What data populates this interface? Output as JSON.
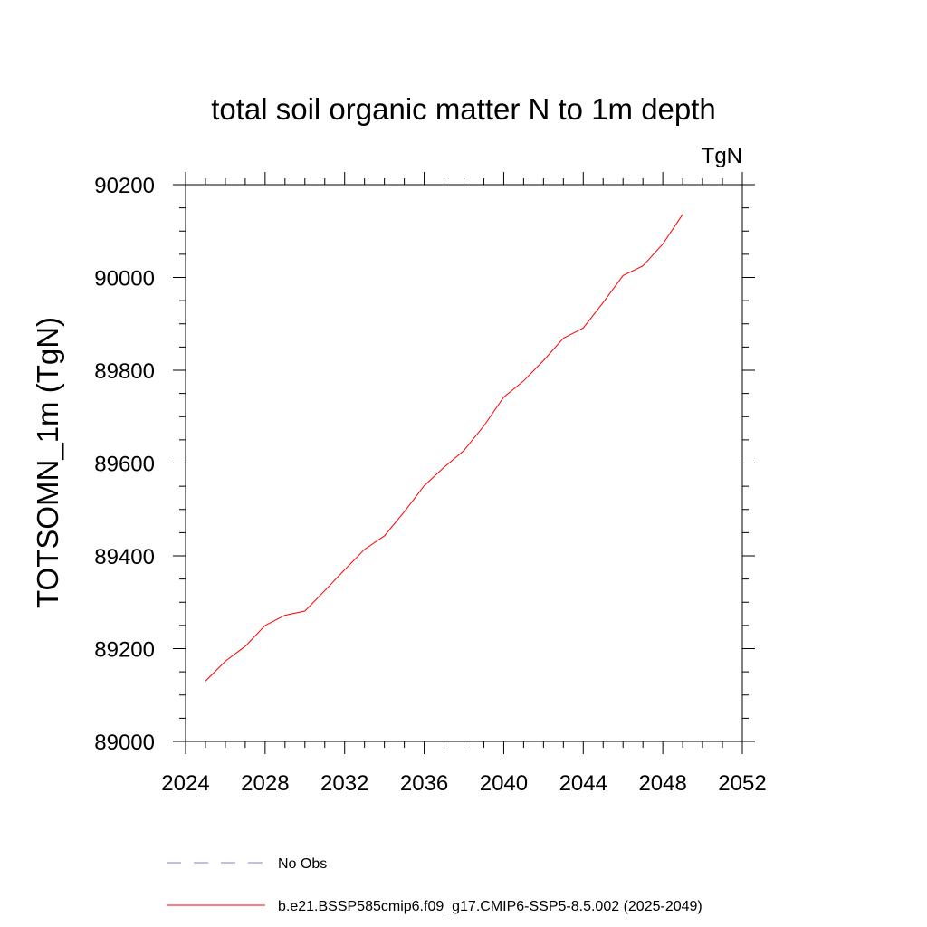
{
  "chart_data": {
    "type": "line",
    "title": "total soil organic matter N to 1m depth",
    "units_label": "TgN",
    "ylabel": "TOTSOMN_1m  (TgN)",
    "xlabel": "",
    "xlim": [
      2024,
      2052
    ],
    "ylim": [
      89000,
      90200
    ],
    "xticks": [
      2024,
      2028,
      2032,
      2036,
      2040,
      2044,
      2048,
      2052
    ],
    "yticks": [
      89000,
      89200,
      89400,
      89600,
      89800,
      90000,
      90200
    ],
    "grid": false,
    "legend_position": "bottom",
    "series": [
      {
        "name": "b.e21.BSSP585cmip6.f09_g17.CMIP6-SSP5-8.5.002 (2025-2049)",
        "color": "#ff0000",
        "line_style": "solid",
        "x": [
          2025,
          2026,
          2027,
          2028,
          2029,
          2030,
          2031,
          2032,
          2033,
          2034,
          2035,
          2036,
          2037,
          2038,
          2039,
          2040,
          2041,
          2042,
          2043,
          2044,
          2045,
          2046,
          2047,
          2048,
          2049
        ],
        "y": [
          89130,
          89173,
          89205,
          89250,
          89272,
          89281,
          89325,
          89370,
          89414,
          89443,
          89495,
          89551,
          89591,
          89627,
          89680,
          89742,
          89777,
          89821,
          89869,
          89891,
          89946,
          90004,
          90025,
          90072,
          90136
        ]
      },
      {
        "name": "No Obs",
        "color": "#8080c0",
        "line_style": "dashed",
        "x": [],
        "y": []
      }
    ]
  }
}
